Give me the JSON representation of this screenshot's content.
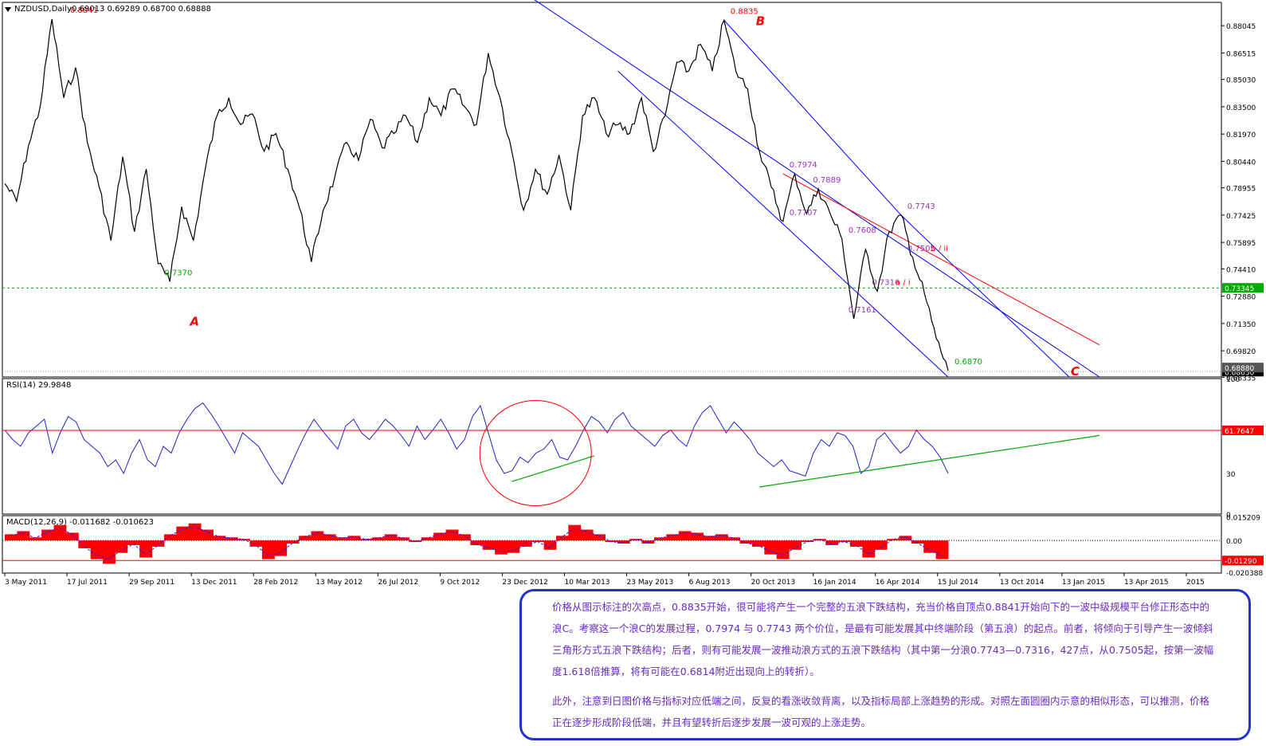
{
  "window": {
    "title": "NZDUSD,Daily",
    "ohlc": "0.69013 0.69289 0.68700 0.68888"
  },
  "chart_data": [
    {
      "type": "candlestick",
      "symbol": "NZDUSD",
      "timeframe": "Daily",
      "last_ohlc": {
        "open": 0.69013,
        "high": 0.69289,
        "low": 0.687,
        "close": 0.68888
      },
      "ylim": [
        0.6835,
        0.8935
      ],
      "y_ticks": [
        0.88045,
        0.86515,
        0.8503,
        0.835,
        0.8197,
        0.8044,
        0.78955,
        0.77425,
        0.75895,
        0.7441,
        0.7288,
        0.7135,
        0.6982,
        0.68335
      ],
      "x_ticks": [
        "3 May 2011",
        "17 Jul 2011",
        "29 Sep 2011",
        "13 Dec 2011",
        "28 Feb 2012",
        "13 May 2012",
        "26 Jul 2012",
        "9 Oct 2012",
        "23 Dec 2012",
        "10 Mar 2013",
        "23 May 2013",
        "6 Aug 2013",
        "20 Oct 2013",
        "16 Jan 2014",
        "16 Apr 2014",
        "15 Jul 2014",
        "13 Oct 2014",
        "13 Jan 2015",
        "13 Apr 2015",
        "2015"
      ],
      "close_path": [
        [
          "3 May 2011",
          0.792
        ],
        [
          "May 2011",
          0.782
        ],
        [
          "Jun 2011",
          0.813
        ],
        [
          "Jul 2011",
          0.835
        ],
        [
          "1 Aug 2011",
          0.8841
        ],
        [
          "Aug 2011",
          0.84
        ],
        [
          "Aug 2011",
          0.857
        ],
        [
          "Sep 2011",
          0.815
        ],
        [
          "Sep 2011",
          0.79
        ],
        [
          "Sep 2011",
          0.76
        ],
        [
          "Oct 2011",
          0.807
        ],
        [
          "Oct 2011",
          0.765
        ],
        [
          "Oct 2011",
          0.8
        ],
        [
          "Nov 2011",
          0.747
        ],
        [
          "Nov 2011",
          0.737
        ],
        [
          "Dec 2011",
          0.779
        ],
        [
          "Dec 2011",
          0.76
        ],
        [
          "Jan 2012",
          0.8
        ],
        [
          "Jan 2012",
          0.83
        ],
        [
          "Feb 2012",
          0.84
        ],
        [
          "Feb 2012",
          0.825
        ],
        [
          "Mar 2012",
          0.831
        ],
        [
          "Mar 2012",
          0.81
        ],
        [
          "Apr 2012",
          0.82
        ],
        [
          "Apr 2012",
          0.8
        ],
        [
          "May 2012",
          0.778
        ],
        [
          "Jun 2012",
          0.748
        ],
        [
          "Jun 2012",
          0.777
        ],
        [
          "Jul 2012",
          0.796
        ],
        [
          "Jul 2012",
          0.815
        ],
        [
          "Aug 2012",
          0.805
        ],
        [
          "Sep 2012",
          0.828
        ],
        [
          "Sep 2012",
          0.812
        ],
        [
          "Oct 2012",
          0.82
        ],
        [
          "Nov 2012",
          0.83
        ],
        [
          "Nov 2012",
          0.815
        ],
        [
          "Dec 2012",
          0.84
        ],
        [
          "Jan 2013",
          0.83
        ],
        [
          "Jan 2013",
          0.845
        ],
        [
          "Feb 2013",
          0.835
        ],
        [
          "Mar 2013",
          0.825
        ],
        [
          "Apr 2013",
          0.865
        ],
        [
          "Apr 2013",
          0.84
        ],
        [
          "May 2013",
          0.81
        ],
        [
          "Jun 2013",
          0.777
        ],
        [
          "Jun 2013",
          0.8
        ],
        [
          "Jul 2013",
          0.786
        ],
        [
          "Aug 2013",
          0.808
        ],
        [
          "Aug 2013",
          0.777
        ],
        [
          "Sep 2013",
          0.83
        ],
        [
          "Oct 2013",
          0.84
        ],
        [
          "Oct 2013",
          0.82
        ],
        [
          "Nov 2013",
          0.825
        ],
        [
          "Dec 2013",
          0.82
        ],
        [
          "Jan 2014",
          0.84
        ],
        [
          "Jan 2014",
          0.81
        ],
        [
          "Feb 2014",
          0.83
        ],
        [
          "Mar 2014",
          0.86
        ],
        [
          "Apr 2014",
          0.855
        ],
        [
          "May 2014",
          0.87
        ],
        [
          "Jun 2014",
          0.855
        ],
        [
          "Jul 2014",
          0.8835
        ],
        [
          "Jul 2014",
          0.855
        ],
        [
          "Aug 2014",
          0.845
        ],
        [
          "Sep 2014",
          0.81
        ],
        [
          "Sep 2014",
          0.79
        ],
        [
          "Oct 2014",
          0.7707
        ],
        [
          "Oct 2014",
          0.7974
        ],
        [
          "Nov 2014",
          0.775
        ],
        [
          "Nov 2014",
          0.7889
        ],
        [
          "Dec 2014",
          0.775
        ],
        [
          "Jan 2015",
          0.7608
        ],
        [
          "Jan 2015",
          0.7161
        ],
        [
          "Feb 2015",
          0.755
        ],
        [
          "Feb 2015",
          0.7316
        ],
        [
          "Mar 2015",
          0.765
        ],
        [
          "Apr 2015",
          0.7743
        ],
        [
          "Apr 2015",
          0.7505
        ],
        [
          "May 2015",
          0.73
        ],
        [
          "Jun 2015",
          0.705
        ],
        [
          "Jul 2015",
          0.687
        ]
      ],
      "price_tags": [
        {
          "value": 0.73345,
          "label": "0.73345",
          "color": "#00aa00"
        },
        {
          "value": 0.6865,
          "label": "0.68650",
          "color": "#000000"
        },
        {
          "value": 0.6888,
          "label": "0.68880",
          "color": "#555555"
        }
      ],
      "trendlines": [
        {
          "name": "channel upper",
          "color": "#0000ff",
          "from": [
            "Jun 2013",
            0.899
          ],
          "to": [
            "Dec 2015",
            0.6835
          ]
        },
        {
          "name": "channel lower",
          "color": "#0000ff",
          "from": [
            "Nov 2013",
            0.855
          ],
          "to": [
            "Jul 2015",
            0.6835
          ]
        },
        {
          "name": "channel inner",
          "color": "#0000ff",
          "from": [
            "Jul 2014",
            0.8835
          ],
          "to": [
            "Apr 2015",
            0.7743
          ]
        },
        {
          "name": "b-wave tail",
          "color": "#0000ff",
          "from": [
            "Apr 2015",
            0.7743
          ],
          "to": [
            "Nov 2015",
            0.6835
          ]
        },
        {
          "name": "red resistance",
          "color": "#ff0000",
          "from": [
            "Oct 2014",
            0.7974
          ],
          "to": [
            "Dec 2015",
            0.7015
          ]
        }
      ],
      "annotations": [
        {
          "text": "0.8841",
          "date": "Aug 2011",
          "value": 0.8841,
          "color": "#ff0000"
        },
        {
          "text": "0.7370",
          "date": "Nov 2011",
          "value": 0.737,
          "color": "#00aa00"
        },
        {
          "text": "A",
          "date": "Nov 2011",
          "value": 0.715,
          "color": "#ff0000"
        },
        {
          "text": "0.8835",
          "date": "Jul 2014",
          "value": 0.8835,
          "color": "#ff0000"
        },
        {
          "text": "B",
          "date": "Jul 2014",
          "value": 0.8835,
          "color": "#ff0000"
        },
        {
          "text": "0.7974",
          "date": "Oct 2014",
          "value": 0.7974,
          "color": "#9b30c8"
        },
        {
          "text": "0.7889",
          "date": "Nov 2014",
          "value": 0.7889,
          "color": "#9b30c8"
        },
        {
          "text": "0.7707",
          "date": "Oct 2014",
          "value": 0.7707,
          "color": "#9b30c8"
        },
        {
          "text": "0.7608",
          "date": "Jan 2015",
          "value": 0.7608,
          "color": "#9b30c8"
        },
        {
          "text": "0.7743",
          "date": "Apr 2015",
          "value": 0.7743,
          "color": "#9b30c8"
        },
        {
          "text": "0.7505",
          "date": "Apr 2015",
          "value": 0.7505,
          "color": "#9b30c8"
        },
        {
          "text": "b / ii",
          "date": "May 2015",
          "value": 0.7505,
          "color": "#ff0000"
        },
        {
          "text": "0.7316",
          "date": "Feb 2015",
          "value": 0.7316,
          "color": "#9b30c8"
        },
        {
          "text": "a / i",
          "date": "Mar 2015",
          "value": 0.7316,
          "color": "#ff0000"
        },
        {
          "text": "0.7161",
          "date": "Jan 2015",
          "value": 0.7161,
          "color": "#9b30c8"
        },
        {
          "text": "0.6870",
          "date": "Jul 2015",
          "value": 0.687,
          "color": "#00aa00"
        },
        {
          "text": "C",
          "date": "Oct 2015",
          "value": 0.687,
          "color": "#ff0000"
        }
      ]
    },
    {
      "type": "line",
      "title": "RSI(14) 29.9848",
      "ylim": [
        0,
        100
      ],
      "y_ticks": [
        100,
        61.7647,
        30,
        0
      ],
      "level_tag": "61.7647",
      "values": [
        62,
        55,
        50,
        60,
        65,
        70,
        45,
        60,
        72,
        68,
        55,
        50,
        45,
        35,
        40,
        30,
        45,
        55,
        40,
        35,
        50,
        45,
        60,
        70,
        78,
        82,
        74,
        65,
        55,
        45,
        60,
        55,
        50,
        40,
        30,
        22,
        35,
        48,
        60,
        70,
        62,
        55,
        48,
        65,
        70,
        60,
        55,
        62,
        70,
        65,
        58,
        50,
        65,
        55,
        62,
        70,
        60,
        48,
        55,
        72,
        80,
        60,
        40,
        30,
        32,
        42,
        38,
        45,
        48,
        55,
        42,
        40,
        50,
        62,
        72,
        68,
        60,
        70,
        75,
        65,
        60,
        55,
        50,
        58,
        62,
        55,
        50,
        65,
        75,
        80,
        70,
        60,
        68,
        62,
        55,
        45,
        40,
        35,
        40,
        32,
        30,
        28,
        45,
        55,
        50,
        60,
        58,
        50,
        30,
        35,
        55,
        60,
        52,
        45,
        50,
        62,
        55,
        50,
        42,
        30
      ],
      "green_lines": [
        {
          "from": [
            "May 2013",
            24
          ],
          "to": [
            "Oct 2013",
            43
          ]
        },
        {
          "from": [
            "Sep 2014",
            20
          ],
          "to": [
            "Dec 2015",
            58
          ]
        }
      ]
    },
    {
      "type": "histogram",
      "title": "MACD(12,26,9) -0.011682 -0.010623",
      "ylim": [
        -0.021,
        0.016
      ],
      "y_ticks": [
        0.015209,
        0.0,
        -0.0129,
        -0.020388
      ],
      "level_tag": "-0.01290",
      "values": [
        0.004,
        0.006,
        0.002,
        0.007,
        0.01,
        0.005,
        -0.005,
        -0.012,
        -0.015,
        -0.008,
        -0.003,
        -0.011,
        -0.004,
        0.004,
        0.009,
        0.011,
        0.007,
        0.003,
        0.002,
        0.001,
        -0.004,
        -0.012,
        -0.01,
        -0.002,
        0.003,
        0.006,
        0.004,
        0.002,
        0.003,
        0.001,
        0.002,
        0.004,
        0.002,
        -0.001,
        0.002,
        0.005,
        0.007,
        0.004,
        -0.003,
        -0.006,
        -0.009,
        -0.008,
        -0.004,
        -0.001,
        -0.006,
        0.003,
        0.01,
        0.007,
        0.004,
        -0.001,
        -0.002,
        0.001,
        -0.002,
        0.002,
        0.004,
        0.006,
        0.005,
        0.003,
        0.004,
        0.002,
        -0.002,
        -0.004,
        -0.009,
        -0.012,
        -0.006,
        -0.001,
        0.001,
        -0.003,
        -0.001,
        -0.004,
        -0.011,
        -0.006,
        0.001,
        0.003,
        -0.002,
        -0.008,
        -0.012
      ]
    }
  ],
  "note": {
    "p1": "价格从图示标注的次高点，0.8835开始，很可能将产生一个完整的五浪下跌结构，充当价格自顶点0.8841开始向下的一波中级规模平台修正形态中的浪C。考察这一个浪C的发展过程，0.7974 与 0.7743 两个价位，是最有可能发展其中终端阶段（第五浪）的起点。前者，将倾向于引导产生一波倾斜三角形方式五浪下跌结构；后者，则有可能发展一波推动浪方式的五浪下跌结构（其中第一分浪0.7743—0.7316，427点，从0.7505起，按第一波幅度1.618倍推算，将有可能在0.6814附近出现向上的转折）。",
    "p2": "此外，注意到日图价格与指标对应低端之间，反复的看涨收敛背离，以及指标局部上涨趋势的形成。对照左面圆圈内示意的相似形态，可以推测，价格正在逐步形成阶段低端，并且有望转折后逐步发展一波可观的上涨走势。"
  },
  "colors": {
    "price": "#000000",
    "channel": "#0000ff",
    "resistance": "#ff0000",
    "rsi": "#2222cc",
    "rsi_level": "#ff0000",
    "macd_hist": "#ff0000",
    "support": "#00aa00",
    "note_text": "#6a2cc0",
    "note_border": "#2233cc"
  }
}
